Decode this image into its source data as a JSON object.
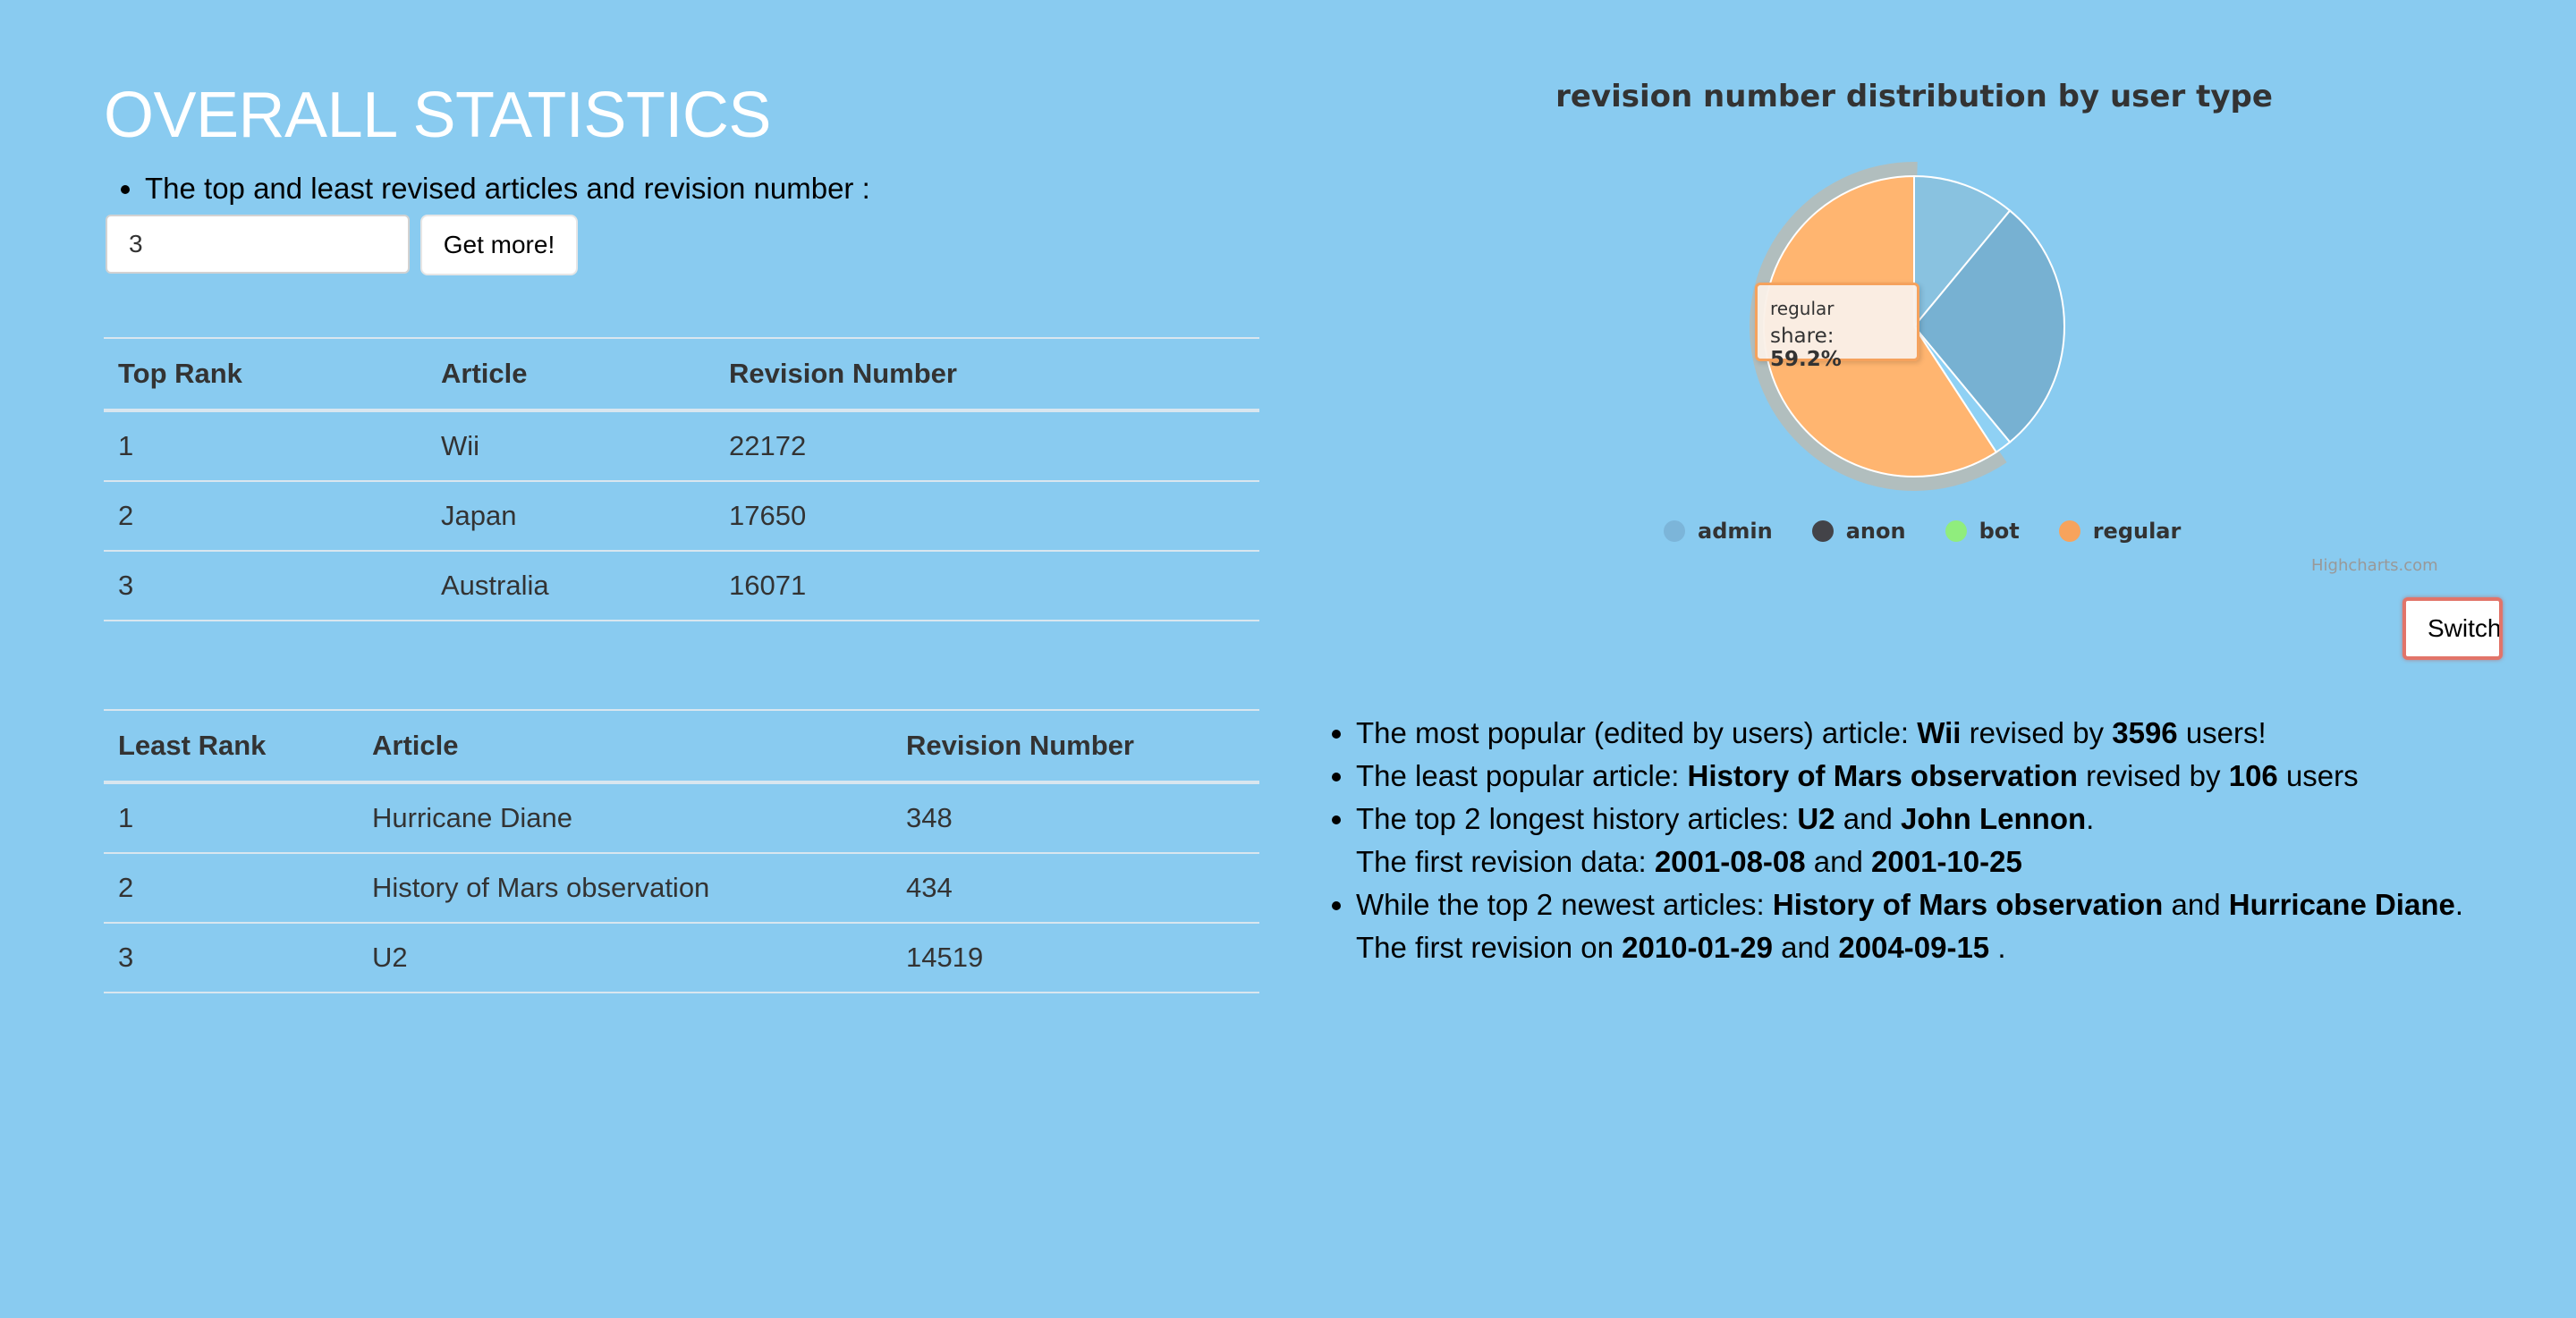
{
  "header": {
    "title": "OVERALL STATISTICS",
    "intro": "The top and least revised articles and revision number :"
  },
  "controls": {
    "input_value": "3",
    "get_more_label": "Get more!"
  },
  "top_table": {
    "headers": [
      "Top Rank",
      "Article",
      "Revision Number"
    ],
    "rows": [
      [
        "1",
        "Wii",
        "22172"
      ],
      [
        "2",
        "Japan",
        "17650"
      ],
      [
        "3",
        "Australia",
        "16071"
      ]
    ]
  },
  "least_table": {
    "headers": [
      "Least Rank",
      "Article",
      "Revision Number"
    ],
    "rows": [
      [
        "1",
        "Hurricane Diane",
        "348"
      ],
      [
        "2",
        "History of Mars observation",
        "434"
      ],
      [
        "3",
        "U2",
        "14519"
      ]
    ]
  },
  "chart_data": {
    "type": "pie",
    "title": "revision number distribution by user type",
    "series": [
      {
        "name": "admin",
        "value": 11.0,
        "color": "#89C2E0"
      },
      {
        "name": "anon",
        "value": 28.0,
        "color": "#77B1D2"
      },
      {
        "name": "bot",
        "value": 1.8,
        "color": "#8FD1F4"
      },
      {
        "name": "regular",
        "value": 59.2,
        "color": "#FFB570"
      }
    ],
    "legend_placement": "bottom",
    "legend_colors": {
      "admin": "#7CB5D9",
      "anon": "#434348",
      "bot": "#90ED7D",
      "regular": "#F7A35C"
    },
    "tooltip": {
      "name": "regular",
      "label": "share: ",
      "value": "59.2%"
    },
    "credits": "Highcharts.com"
  },
  "switch_label": "Switch",
  "facts": {
    "f1": {
      "pre": "The most popular (edited by users) article: ",
      "article": "Wii",
      "mid": " revised by ",
      "count": "3596",
      "post": " users!"
    },
    "f2": {
      "pre": "The least popular article: ",
      "article": "History of Mars observation",
      "mid": " revised by ",
      "count": "106",
      "post": " users"
    },
    "f3": {
      "pre": "The top 2 longest history articles: ",
      "a1": "U2",
      "and": " and ",
      "a2": "John Lennon",
      "post": ".",
      "sub_pre": "The first revision data: ",
      "d1": "2001-08-08",
      "d2": "2001-10-25"
    },
    "f4": {
      "pre": "While the top 2 newest articles: ",
      "a1": "History of Mars observation",
      "and": " and ",
      "a2": "Hurricane Diane",
      "post": ".",
      "sub_pre": "The first revision on ",
      "d1": "2010-01-29",
      "d2": "2004-09-15",
      "sub_post": " ."
    }
  }
}
